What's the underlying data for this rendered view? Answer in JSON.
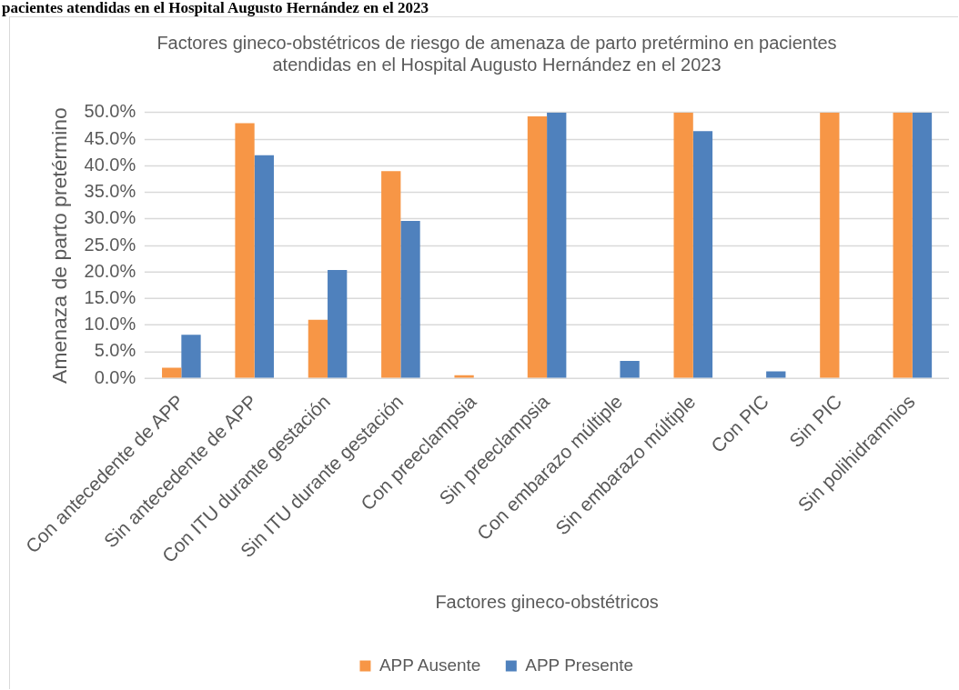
{
  "chart_data": {
    "type": "bar",
    "title": "Factores gineco-obstétricos de riesgo de amenaza de parto pretérmino en pacientes atendidas en el Hospital Augusto Hernández en el 2023",
    "annotations": [
      "pacientes atendidas en el Hospital Augusto Hernández en el 2023"
    ],
    "xlabel": "Factores gineco-obstétricos",
    "ylabel": "Amenaza de parto pretérmino",
    "categories": [
      "Con antecedente de APP",
      "Sin antecedente de APP",
      "Con ITU durante gestación",
      "Sin ITU durante gestación",
      "Con preeclampsia",
      "Sin preeclampsia",
      "Con embarazo múltiple",
      "Sin embarazo múltiple",
      "Con PIC",
      "Sin PIC",
      "Sin polihidramnios"
    ],
    "series": [
      {
        "name": "APP Ausente",
        "color": "#f79646",
        "values": [
          2.0,
          48.0,
          11.0,
          39.0,
          0.6,
          49.3,
          null,
          50.0,
          null,
          50.0,
          50.0
        ]
      },
      {
        "name": "APP Presente",
        "color": "#4f81bd",
        "values": [
          8.2,
          42.0,
          20.4,
          29.6,
          null,
          50.0,
          3.3,
          46.5,
          1.3,
          null,
          50.0
        ]
      }
    ],
    "ylim": [
      0,
      50
    ],
    "yticks": [
      {
        "value": 0,
        "label": "0.0%"
      },
      {
        "value": 5,
        "label": "5.0%"
      },
      {
        "value": 10,
        "label": "10.0%"
      },
      {
        "value": 15,
        "label": "15.0%"
      },
      {
        "value": 20,
        "label": "20.0%"
      },
      {
        "value": 25,
        "label": "25.0%"
      },
      {
        "value": 30,
        "label": "30.0%"
      },
      {
        "value": 35,
        "label": "35.0%"
      },
      {
        "value": 40,
        "label": "40.0%"
      },
      {
        "value": 45,
        "label": "45.0%"
      },
      {
        "value": 50,
        "label": "50.0%"
      }
    ],
    "grid": "y",
    "legend": "bottom"
  }
}
